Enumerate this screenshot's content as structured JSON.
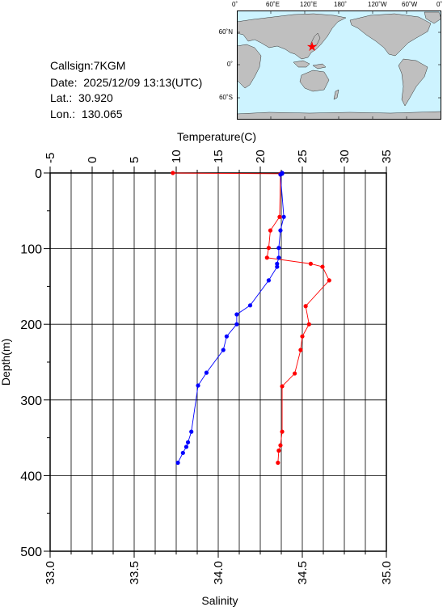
{
  "station": {
    "callsign": "Callsign:7KGM",
    "date": "Date:  2025/12/09 13:13(UTC)",
    "lat": "Lat.:  30.920",
    "lon": "Lon.:  130.065"
  },
  "map": {
    "top_labels": [
      "0˚",
      "60˚E",
      "120˚E",
      "180˚",
      "120˚W",
      "60˚W",
      "0˚"
    ],
    "lat_labels": [
      "60˚N",
      "0˚",
      "60˚S"
    ],
    "ocean_color": "#cdf3ff",
    "land_color": "#bfbfbf",
    "marker": "red-star",
    "marker_color": "#ff0000"
  },
  "chart_data": {
    "type": "line",
    "ylabel": "Depth(m)",
    "ylim": [
      0,
      500
    ],
    "y_inverted": true,
    "y_ticks": [
      "0",
      "100",
      "200",
      "300",
      "400",
      "500"
    ],
    "top_axis": {
      "label": "Temperature(C)",
      "lim": [
        -5,
        35
      ],
      "ticks": [
        "-5",
        "0",
        "5",
        "10",
        "15",
        "20",
        "25",
        "30",
        "35"
      ]
    },
    "bottom_axis": {
      "label": "Salinity",
      "lim": [
        33.0,
        35.0
      ],
      "ticks": [
        "33.0",
        "33.5",
        "34.0",
        "34.5",
        "35.0"
      ]
    },
    "grid": true,
    "series": [
      {
        "axis": "top",
        "color": "#ff0000",
        "points": [
          [
            9.6,
            0
          ],
          [
            22.4,
            1
          ],
          [
            22.4,
            2
          ],
          [
            22.3,
            58
          ],
          [
            21.2,
            76
          ],
          [
            21.0,
            99
          ],
          [
            20.8,
            112
          ],
          [
            26.0,
            120
          ],
          [
            27.4,
            124
          ],
          [
            28.2,
            142
          ],
          [
            25.4,
            176
          ],
          [
            25.8,
            200
          ],
          [
            25.0,
            216
          ],
          [
            24.8,
            234
          ],
          [
            24.1,
            265
          ],
          [
            22.6,
            282
          ],
          [
            22.6,
            342
          ],
          [
            22.4,
            360
          ],
          [
            22.2,
            367
          ],
          [
            22.1,
            383
          ]
        ]
      },
      {
        "axis": "bottom",
        "color": "#0000ff",
        "points": [
          [
            34.38,
            0
          ],
          [
            34.38,
            1
          ],
          [
            34.37,
            2
          ],
          [
            34.39,
            58
          ],
          [
            34.37,
            76
          ],
          [
            34.36,
            99
          ],
          [
            34.36,
            112
          ],
          [
            34.35,
            120
          ],
          [
            34.35,
            124
          ],
          [
            34.3,
            142
          ],
          [
            34.19,
            175
          ],
          [
            34.11,
            187
          ],
          [
            34.11,
            200
          ],
          [
            34.05,
            216
          ],
          [
            34.03,
            234
          ],
          [
            33.93,
            264
          ],
          [
            33.88,
            281
          ],
          [
            33.84,
            342
          ],
          [
            33.82,
            356
          ],
          [
            33.81,
            362
          ],
          [
            33.79,
            370
          ],
          [
            33.76,
            383
          ]
        ]
      }
    ]
  }
}
